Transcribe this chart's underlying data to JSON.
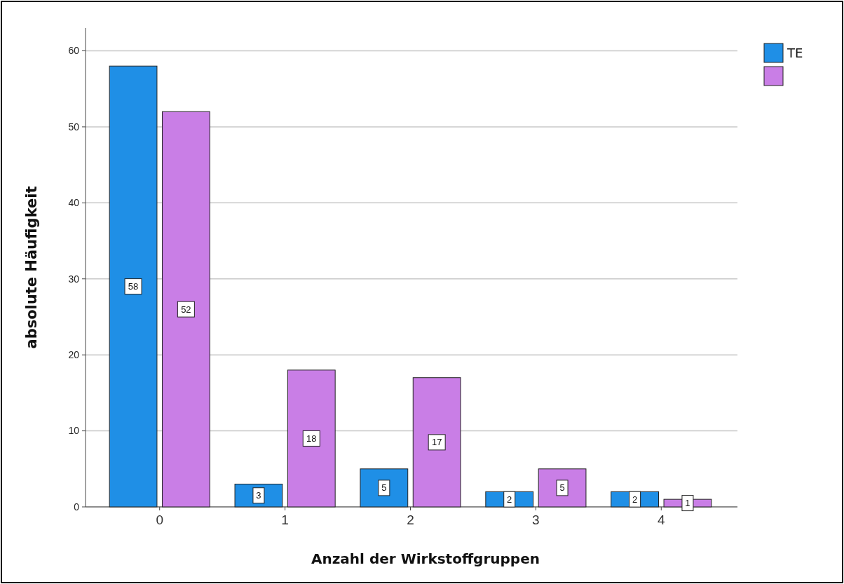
{
  "chart_data": {
    "type": "bar",
    "xlabel": "Anzahl der Wirkstoffgruppen",
    "ylabel": "absolute Häufigkeit",
    "categories": [
      "0",
      "1",
      "2",
      "3",
      "4"
    ],
    "series": [
      {
        "name": "TE",
        "color": "#1f8fe6",
        "values": [
          58,
          3,
          5,
          2,
          2
        ]
      },
      {
        "color": "#c97ee6",
        "values": [
          52,
          18,
          17,
          5,
          1
        ]
      }
    ],
    "ylim": [
      0,
      63
    ],
    "yticks": [
      0,
      10,
      20,
      30,
      40,
      50,
      60
    ],
    "grid": "y",
    "legend": "top right",
    "data_labels": true
  }
}
